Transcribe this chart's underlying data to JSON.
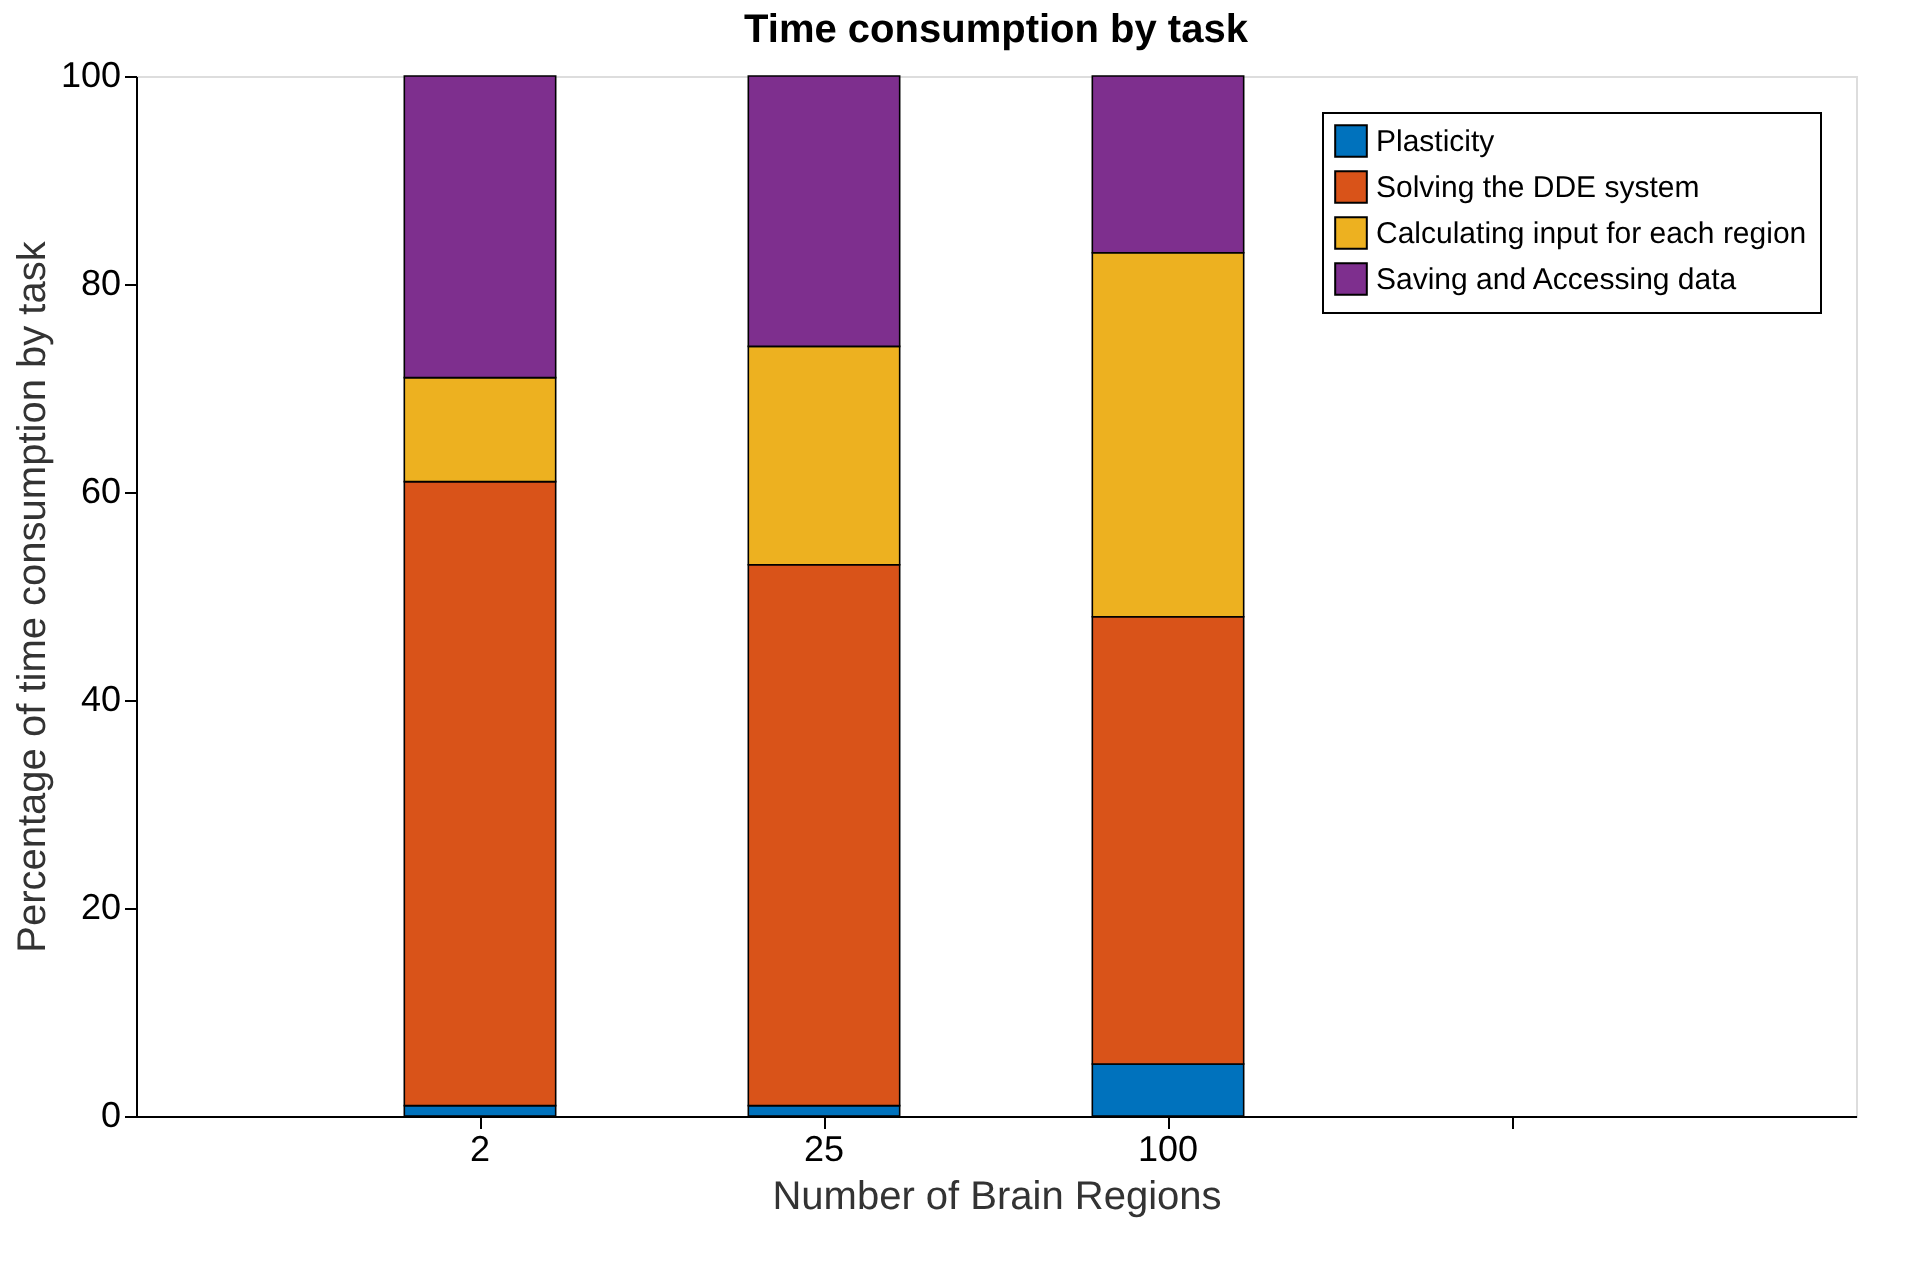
{
  "chart_data": {
    "type": "bar",
    "title": "Time consumption by task",
    "xlabel": "Number of Brain Regions",
    "ylabel": "Percentage of time consumption by task",
    "categories": [
      "2",
      "25",
      "100",
      null
    ],
    "stacked": true,
    "series": [
      {
        "name": "Plasticity",
        "color": "#0072bd",
        "values": [
          1,
          1,
          5,
          null
        ]
      },
      {
        "name": "Solving the DDE system",
        "color": "#d95319",
        "values": [
          60,
          52,
          43,
          null
        ]
      },
      {
        "name": "Calculating input for each region",
        "color": "#edb120",
        "values": [
          10,
          21,
          35,
          null
        ]
      },
      {
        "name": "Saving and Accessing data",
        "color": "#7e2f8e",
        "values": [
          29,
          26,
          17,
          null
        ]
      }
    ],
    "ylim": [
      0,
      100
    ],
    "yticks": [
      0,
      20,
      40,
      60,
      80,
      100
    ],
    "grid": false,
    "legend": "top right"
  }
}
